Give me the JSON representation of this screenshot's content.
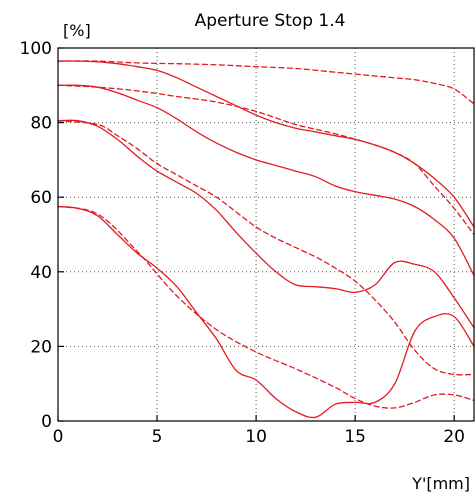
{
  "chart_data": {
    "type": "line",
    "title": "Aperture Stop 1.4",
    "ylabel": "[%]",
    "xlabel": "Y'[mm]",
    "xlim": [
      0,
      21
    ],
    "ylim": [
      0,
      100
    ],
    "x_ticks": [
      0,
      5,
      10,
      15,
      20
    ],
    "y_ticks": [
      0,
      20,
      40,
      60,
      80,
      100
    ],
    "grid": true,
    "line_color": "#e31b23",
    "series": [
      {
        "style": "solid",
        "x": [
          0,
          1,
          2,
          3,
          4,
          5,
          6,
          7,
          8,
          9,
          10,
          11,
          12,
          13,
          14,
          15,
          16,
          17,
          18,
          19,
          20,
          21
        ],
        "y": [
          96.5,
          96.5,
          96.3,
          95.8,
          95,
          94,
          92,
          89.5,
          87,
          84.5,
          82,
          80,
          78.5,
          77.5,
          76.5,
          75.5,
          74,
          72,
          69,
          65,
          60,
          52
        ]
      },
      {
        "style": "dashed",
        "x": [
          0,
          2,
          4,
          6,
          8,
          10,
          12,
          14,
          16,
          17,
          18,
          19,
          20,
          21
        ],
        "y": [
          96.5,
          96.5,
          96,
          95.8,
          95.5,
          95,
          94.5,
          93.5,
          92.5,
          92,
          91.5,
          90.5,
          89,
          85
        ]
      },
      {
        "style": "solid",
        "x": [
          0,
          1,
          2,
          3,
          4,
          5,
          6,
          7,
          8,
          9,
          10,
          11,
          12,
          13,
          14,
          15,
          16,
          17,
          18,
          19,
          20,
          21
        ],
        "y": [
          90,
          90,
          89.5,
          88,
          86,
          84,
          81,
          77.5,
          74.5,
          72,
          70,
          68.5,
          67,
          65.5,
          63,
          61.5,
          60.5,
          59.5,
          57.5,
          54,
          49,
          39
        ]
      },
      {
        "style": "dashed",
        "x": [
          0,
          2,
          4,
          6,
          8,
          10,
          12,
          14,
          16,
          17,
          18,
          19,
          20,
          21
        ],
        "y": [
          90,
          89.5,
          88.5,
          87,
          85.5,
          83,
          79.5,
          77,
          74,
          72,
          69,
          63,
          57,
          50
        ]
      },
      {
        "style": "solid",
        "x": [
          0,
          1,
          2,
          3,
          4,
          5,
          6,
          7,
          8,
          9,
          10,
          11,
          12,
          13,
          14,
          15,
          16,
          17,
          18,
          19,
          20,
          21
        ],
        "y": [
          80.5,
          80.5,
          79,
          75.5,
          71,
          67,
          64,
          61,
          56.5,
          50.5,
          45,
          40,
          36.5,
          36,
          35.5,
          34.5,
          36.5,
          42.5,
          42,
          40,
          33,
          25
        ]
      },
      {
        "style": "dashed",
        "x": [
          0,
          2,
          3,
          4,
          5,
          6,
          7,
          8,
          9,
          10,
          11,
          12,
          13,
          14,
          15,
          16,
          17,
          18,
          19,
          20,
          21
        ],
        "y": [
          80.5,
          79.5,
          76.5,
          73,
          69,
          66,
          63,
          60,
          56,
          52,
          49,
          46.5,
          44,
          41,
          37.5,
          32.5,
          26.5,
          19,
          14,
          12.5,
          12.5
        ]
      },
      {
        "style": "solid",
        "x": [
          0,
          1,
          2,
          3,
          4,
          5,
          6,
          7,
          8,
          9,
          10,
          11,
          12,
          13,
          14,
          15,
          16,
          17,
          18,
          19,
          20,
          21
        ],
        "y": [
          57.5,
          57,
          55,
          50,
          45,
          41,
          36,
          29,
          22,
          13.5,
          11,
          6,
          2.5,
          1,
          4.5,
          5,
          5,
          10,
          24,
          28,
          28,
          20
        ]
      },
      {
        "style": "dashed",
        "x": [
          0,
          2,
          4,
          6,
          8,
          10,
          12,
          14,
          15,
          16,
          17,
          18,
          19,
          20,
          21
        ],
        "y": [
          57.5,
          55.5,
          45.5,
          33.5,
          24.5,
          18.5,
          14,
          9,
          6,
          4,
          3.5,
          5,
          7,
          7,
          5.5
        ]
      }
    ]
  }
}
